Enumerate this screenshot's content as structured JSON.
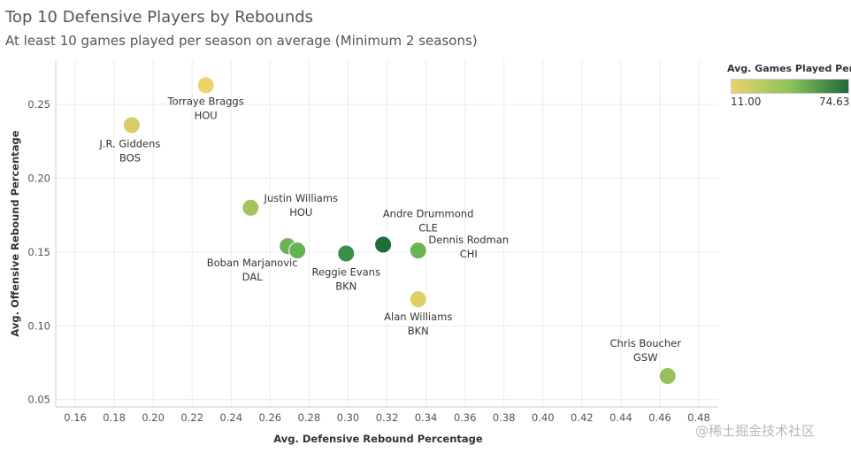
{
  "chart_data": {
    "type": "scatter",
    "title": "Top 10 Defensive Players by Rebounds",
    "subtitle": "At least 10 games played per season on average (Minimum 2 seasons)",
    "xlabel": "Avg. Defensive Rebound Percentage",
    "ylabel": "Avg. Offensive Rebound Percentage",
    "xlim": [
      0.15,
      0.49
    ],
    "ylim": [
      0.045,
      0.28
    ],
    "xticks": [
      "0.16",
      "0.18",
      "0.20",
      "0.22",
      "0.24",
      "0.26",
      "0.28",
      "0.30",
      "0.32",
      "0.34",
      "0.36",
      "0.38",
      "0.40",
      "0.42",
      "0.44",
      "0.46",
      "0.48"
    ],
    "yticks": [
      "0.05",
      "0.10",
      "0.15",
      "0.20",
      "0.25"
    ],
    "grid": true,
    "legend": {
      "title": "Avg. Games Played Per ..",
      "min": "11.00",
      "max": "74.63",
      "placement": "top-right",
      "color_low": "#e8d46a",
      "color_mid": "#8dc35a",
      "color_high": "#1e6b3a"
    },
    "points": [
      {
        "name": "Torraye Braggs",
        "team": "HOU",
        "x": 0.227,
        "y": 0.263,
        "color": "#ecd36a"
      },
      {
        "name": "J.R. Giddens",
        "team": "BOS",
        "x": 0.189,
        "y": 0.236,
        "color": "#d8cd65"
      },
      {
        "name": "Justin Williams",
        "team": "HOU",
        "x": 0.25,
        "y": 0.18,
        "color": "#a7c35d"
      },
      {
        "name": "Boban Marjanovic",
        "team": "DAL",
        "x": 0.269,
        "y": 0.154,
        "color": "#6ab454"
      },
      {
        "name": "",
        "team": "",
        "x": 0.274,
        "y": 0.151,
        "color": "#63b153"
      },
      {
        "name": "Reggie Evans",
        "team": "BKN",
        "x": 0.299,
        "y": 0.149,
        "color": "#3b8e47"
      },
      {
        "name": "Andre Drummond",
        "team": "CLE",
        "x": 0.318,
        "y": 0.155,
        "color": "#1e6e3a"
      },
      {
        "name": "Dennis Rodman",
        "team": "CHI",
        "x": 0.336,
        "y": 0.151,
        "color": "#6cb355"
      },
      {
        "name": "Alan Williams",
        "team": "BKN",
        "x": 0.336,
        "y": 0.118,
        "color": "#dcd067"
      },
      {
        "name": "Chris Boucher",
        "team": "GSW",
        "x": 0.464,
        "y": 0.066,
        "color": "#97c05b"
      }
    ]
  },
  "watermark": "@稀土掘金技术社区"
}
